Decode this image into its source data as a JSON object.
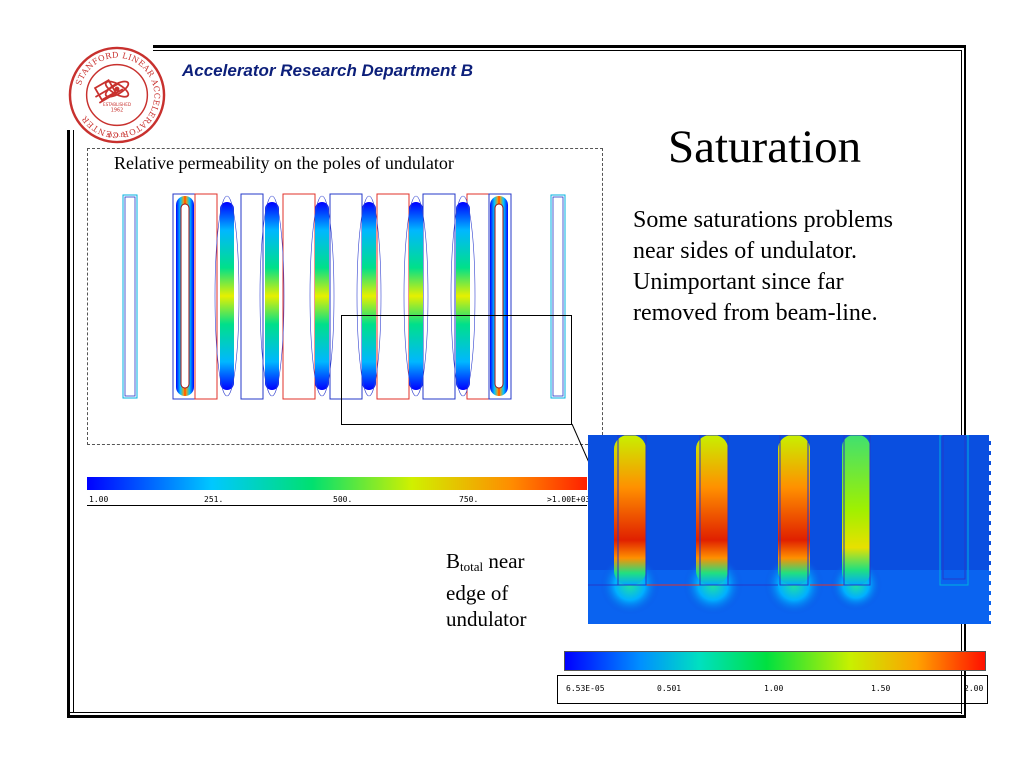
{
  "header": {
    "department": "Accelerator Research Department B",
    "logo": {
      "name": "slac-seal-logo",
      "ring_text": "STANFORD LINEAR ACCELERATOR CENTER",
      "established": "ESTABLISHED",
      "year": "1962",
      "agency": "D.O.E."
    }
  },
  "slide": {
    "title": "Saturation",
    "body": "Some saturations problems near sides of undulator.  Unimportant since far removed from beam-line."
  },
  "figure_permeability": {
    "caption": "Relative permeability on the poles of undulator",
    "scale_labels": [
      "1.00",
      "251.",
      "500.",
      "750.",
      ">1.00E+03"
    ]
  },
  "figure_btotal": {
    "label_main": "B",
    "label_sub": "total",
    "label_rest_line1": " near",
    "label_line2": "edge of",
    "label_line3": "undulator",
    "scale_labels": [
      "6.53E-05",
      "0.501",
      "1.00",
      "1.50",
      "2.00"
    ]
  },
  "colors": {
    "department_text": "#0c1f7a",
    "logo_red": "#c8312e",
    "pole_outline_red": "#e0302a",
    "pole_outline_blue": "#2438c8",
    "field_background": "#0a4fe0"
  }
}
